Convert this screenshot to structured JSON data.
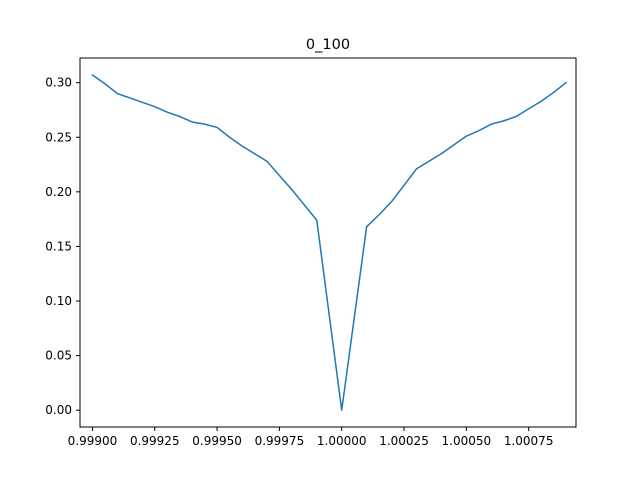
{
  "chart_data": {
    "type": "line",
    "title": "0_100",
    "xlabel": "",
    "ylabel": "",
    "xlim": [
      0.99895,
      1.00094
    ],
    "ylim": [
      -0.0154,
      0.3226
    ],
    "grid": false,
    "legend": "none",
    "x_ticks": [
      {
        "value": 0.999,
        "label": "0.99900"
      },
      {
        "value": 0.99925,
        "label": "0.99925"
      },
      {
        "value": 0.9995,
        "label": "0.99950"
      },
      {
        "value": 0.99975,
        "label": "0.99975"
      },
      {
        "value": 1.0,
        "label": "1.00000"
      },
      {
        "value": 1.00025,
        "label": "1.00025"
      },
      {
        "value": 1.0005,
        "label": "1.00050"
      },
      {
        "value": 1.00075,
        "label": "1.00075"
      }
    ],
    "y_ticks": [
      {
        "value": 0.0,
        "label": "0.00"
      },
      {
        "value": 0.05,
        "label": "0.05"
      },
      {
        "value": 0.1,
        "label": "0.10"
      },
      {
        "value": 0.15,
        "label": "0.15"
      },
      {
        "value": 0.2,
        "label": "0.20"
      },
      {
        "value": 0.25,
        "label": "0.25"
      },
      {
        "value": 0.3,
        "label": "0.30"
      }
    ],
    "series": [
      {
        "color": "#1f77b4",
        "x": [
          0.999,
          0.99905,
          0.9991,
          0.99915,
          0.9992,
          0.99925,
          0.9993,
          0.99935,
          0.9994,
          0.99945,
          0.9995,
          0.99955,
          0.9996,
          0.99965,
          0.9997,
          0.99975,
          0.9998,
          0.99985,
          0.9999,
          0.99995,
          1.0,
          1.00005,
          1.0001,
          1.00015,
          1.0002,
          1.00025,
          1.0003,
          1.00035,
          1.0004,
          1.00045,
          1.0005,
          1.00055,
          1.0006,
          1.00065,
          1.0007,
          1.00075,
          1.0008,
          1.00085,
          1.0009
        ],
        "y": [
          0.307,
          0.299,
          0.29,
          0.286,
          0.282,
          0.278,
          0.273,
          0.269,
          0.264,
          0.262,
          0.259,
          0.25,
          0.242,
          0.235,
          0.228,
          0.215,
          0.202,
          0.188,
          0.174,
          0.087,
          0.0,
          0.084,
          0.168,
          0.179,
          0.191,
          0.206,
          0.221,
          0.228,
          0.235,
          0.243,
          0.251,
          0.256,
          0.262,
          0.265,
          0.269,
          0.276,
          0.283,
          0.291,
          0.3
        ]
      }
    ]
  }
}
